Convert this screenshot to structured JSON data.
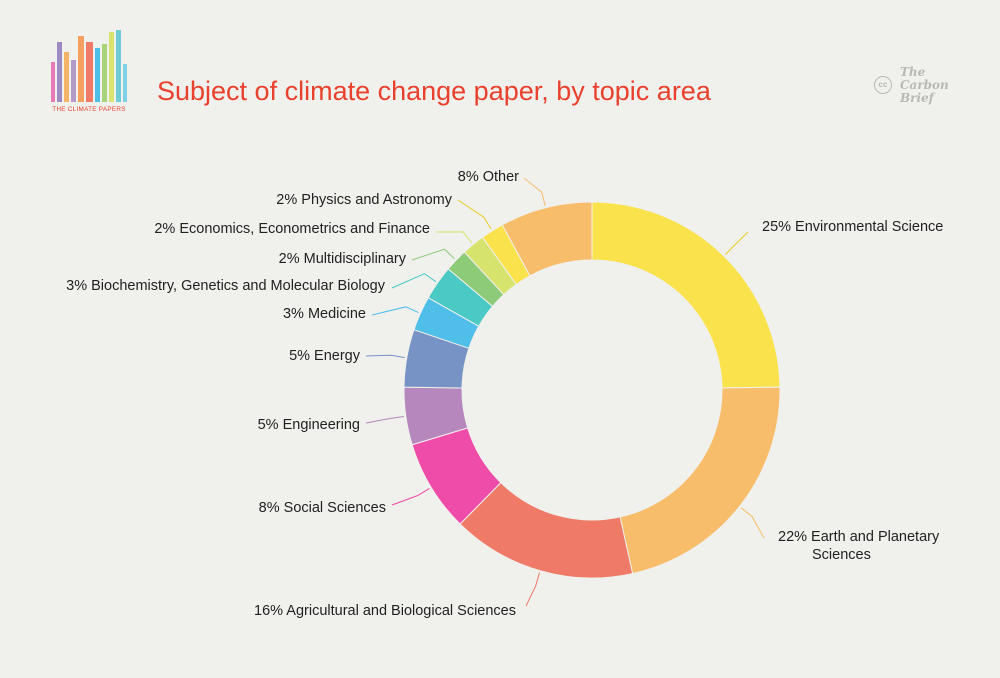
{
  "header": {
    "logo_text": "THE CLIMATE PAPERS",
    "title": "Subject of climate change paper, by topic area",
    "brand_symbol": "cc",
    "brand_lines": [
      "The",
      "Carbon",
      "Brief"
    ]
  },
  "colors": {
    "background": "#f0f0ec",
    "title": "#e8412d"
  },
  "chart_data": {
    "type": "pie",
    "style": "donut",
    "title": "Subject of climate change paper, by topic area",
    "unit": "%",
    "slices": [
      {
        "label": "25% Environmental Science",
        "value": 25,
        "color": "#f9e24b"
      },
      {
        "label": "22% Earth and Planetary Sciences",
        "value": 22,
        "color": "#f7bd6a"
      },
      {
        "label": "16% Agricultural and Biological Sciences",
        "value": 16,
        "color": "#f07a68"
      },
      {
        "label": "8% Social Sciences",
        "value": 8,
        "color": "#ef4ba8"
      },
      {
        "label": "5% Engineering",
        "value": 5,
        "color": "#b587bd"
      },
      {
        "label": "5% Energy",
        "value": 5,
        "color": "#7793c6"
      },
      {
        "label": "3% Medicine",
        "value": 3,
        "color": "#4fbfe9"
      },
      {
        "label": "3% Biochemistry, Genetics and Molecular Biology",
        "value": 3,
        "color": "#4bc9c4"
      },
      {
        "label": "2% Multidisciplinary",
        "value": 2,
        "color": "#8dcb78"
      },
      {
        "label": "2% Economics, Econometrics and Finance",
        "value": 2,
        "color": "#d6e46e"
      },
      {
        "label": "2% Physics and Astronomy",
        "value": 2,
        "color": "#f9e24b"
      },
      {
        "label": "8% Other",
        "value": 8,
        "color": "#f7bd6a"
      }
    ]
  }
}
